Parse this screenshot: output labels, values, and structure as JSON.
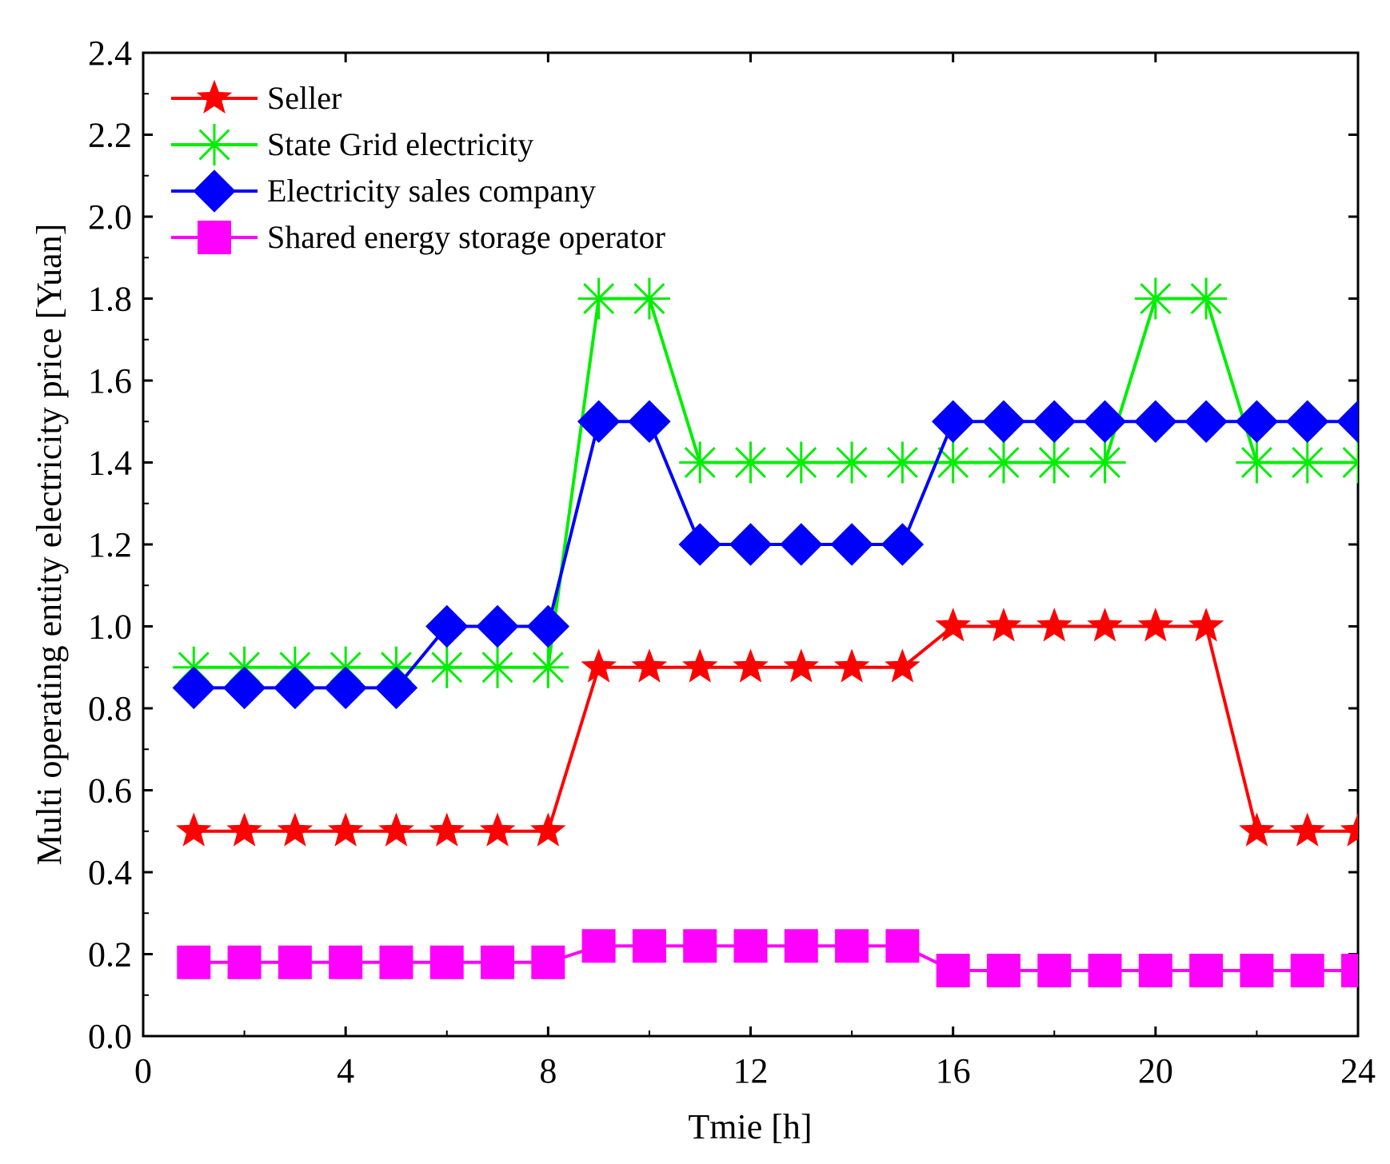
{
  "chart_data": {
    "type": "line",
    "title": "",
    "xlabel": "Tmie [h]",
    "ylabel": "Multi operating entity electricity price [Yuan]",
    "xlim": [
      0,
      24
    ],
    "ylim": [
      0,
      2.4
    ],
    "xticks": [
      0,
      4,
      8,
      12,
      16,
      20,
      24
    ],
    "yticks": [
      0.0,
      0.2,
      0.4,
      0.6,
      0.8,
      1.0,
      1.2,
      1.4,
      1.6,
      1.8,
      2.0,
      2.2,
      2.4
    ],
    "xtick_labels": [
      "0",
      "4",
      "8",
      "12",
      "16",
      "20",
      "24"
    ],
    "ytick_labels": [
      "0.0",
      "0.2",
      "0.4",
      "0.6",
      "0.8",
      "1.0",
      "1.2",
      "1.4",
      "1.6",
      "1.8",
      "2.0",
      "2.2",
      "2.4"
    ],
    "grid": false,
    "legend_position": "top-left",
    "x": [
      1,
      2,
      3,
      4,
      5,
      6,
      7,
      8,
      9,
      10,
      11,
      12,
      13,
      14,
      15,
      16,
      17,
      18,
      19,
      20,
      21,
      22,
      23,
      24
    ],
    "series": [
      {
        "name": "Seller",
        "color": "#ff0000",
        "marker": "star",
        "values": [
          0.5,
          0.5,
          0.5,
          0.5,
          0.5,
          0.5,
          0.5,
          0.5,
          0.9,
          0.9,
          0.9,
          0.9,
          0.9,
          0.9,
          0.9,
          1.0,
          1.0,
          1.0,
          1.0,
          1.0,
          1.0,
          0.5,
          0.5,
          0.5
        ]
      },
      {
        "name": "State Grid electricity",
        "color": "#00ee00",
        "marker": "asterisk",
        "values": [
          0.9,
          0.9,
          0.9,
          0.9,
          0.9,
          0.9,
          0.9,
          0.9,
          1.8,
          1.8,
          1.4,
          1.4,
          1.4,
          1.4,
          1.4,
          1.4,
          1.4,
          1.4,
          1.4,
          1.8,
          1.8,
          1.4,
          1.4,
          1.4
        ]
      },
      {
        "name": "Electricity sales company",
        "color": "#0000ff",
        "marker": "diamond",
        "values": [
          0.85,
          0.85,
          0.85,
          0.85,
          0.85,
          1.0,
          1.0,
          1.0,
          1.5,
          1.5,
          1.2,
          1.2,
          1.2,
          1.2,
          1.2,
          1.5,
          1.5,
          1.5,
          1.5,
          1.5,
          1.5,
          1.5,
          1.5,
          1.5
        ]
      },
      {
        "name": "Shared energy storage operator",
        "color": "#ff00ff",
        "marker": "square",
        "values": [
          0.18,
          0.18,
          0.18,
          0.18,
          0.18,
          0.18,
          0.18,
          0.18,
          0.22,
          0.22,
          0.22,
          0.22,
          0.22,
          0.22,
          0.22,
          0.16,
          0.16,
          0.16,
          0.16,
          0.16,
          0.16,
          0.16,
          0.16,
          0.16
        ]
      }
    ]
  }
}
